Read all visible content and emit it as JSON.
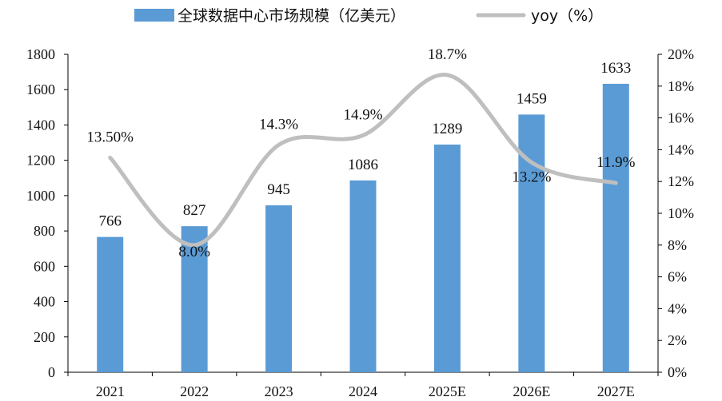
{
  "chart_data": {
    "type": "bar",
    "categories": [
      "2021",
      "2022",
      "2023",
      "2024",
      "2025E",
      "2026E",
      "2027E"
    ],
    "series": [
      {
        "name": "全球数据中心市场规模（亿美元）",
        "type": "bar",
        "axis": "left",
        "values": [
          766,
          827,
          945,
          1086,
          1289,
          1459,
          1633
        ],
        "labels": [
          "766",
          "827",
          "945",
          "1086",
          "1289",
          "1459",
          "1633"
        ]
      },
      {
        "name": "yoy（%）",
        "type": "line",
        "axis": "right",
        "values": [
          13.5,
          8.0,
          14.3,
          14.9,
          18.7,
          13.2,
          11.9
        ],
        "labels": [
          "13.50%",
          "8.0%",
          "14.3%",
          "14.9%",
          "18.7%",
          "13.2%",
          "11.9%"
        ]
      }
    ],
    "y_left": {
      "range": [
        0,
        1800
      ],
      "ticks": [
        "0",
        "200",
        "400",
        "600",
        "800",
        "1000",
        "1200",
        "1400",
        "1600",
        "1800"
      ]
    },
    "y_right": {
      "range": [
        0,
        20
      ],
      "ticks": [
        "0%",
        "2%",
        "4%",
        "6%",
        "8%",
        "10%",
        "12%",
        "14%",
        "16%",
        "18%",
        "20%"
      ]
    },
    "legend": {
      "placement": "top-center"
    },
    "grid": false,
    "colors": {
      "bar": "#5b9bd5",
      "line": "#bfbfbf"
    }
  }
}
